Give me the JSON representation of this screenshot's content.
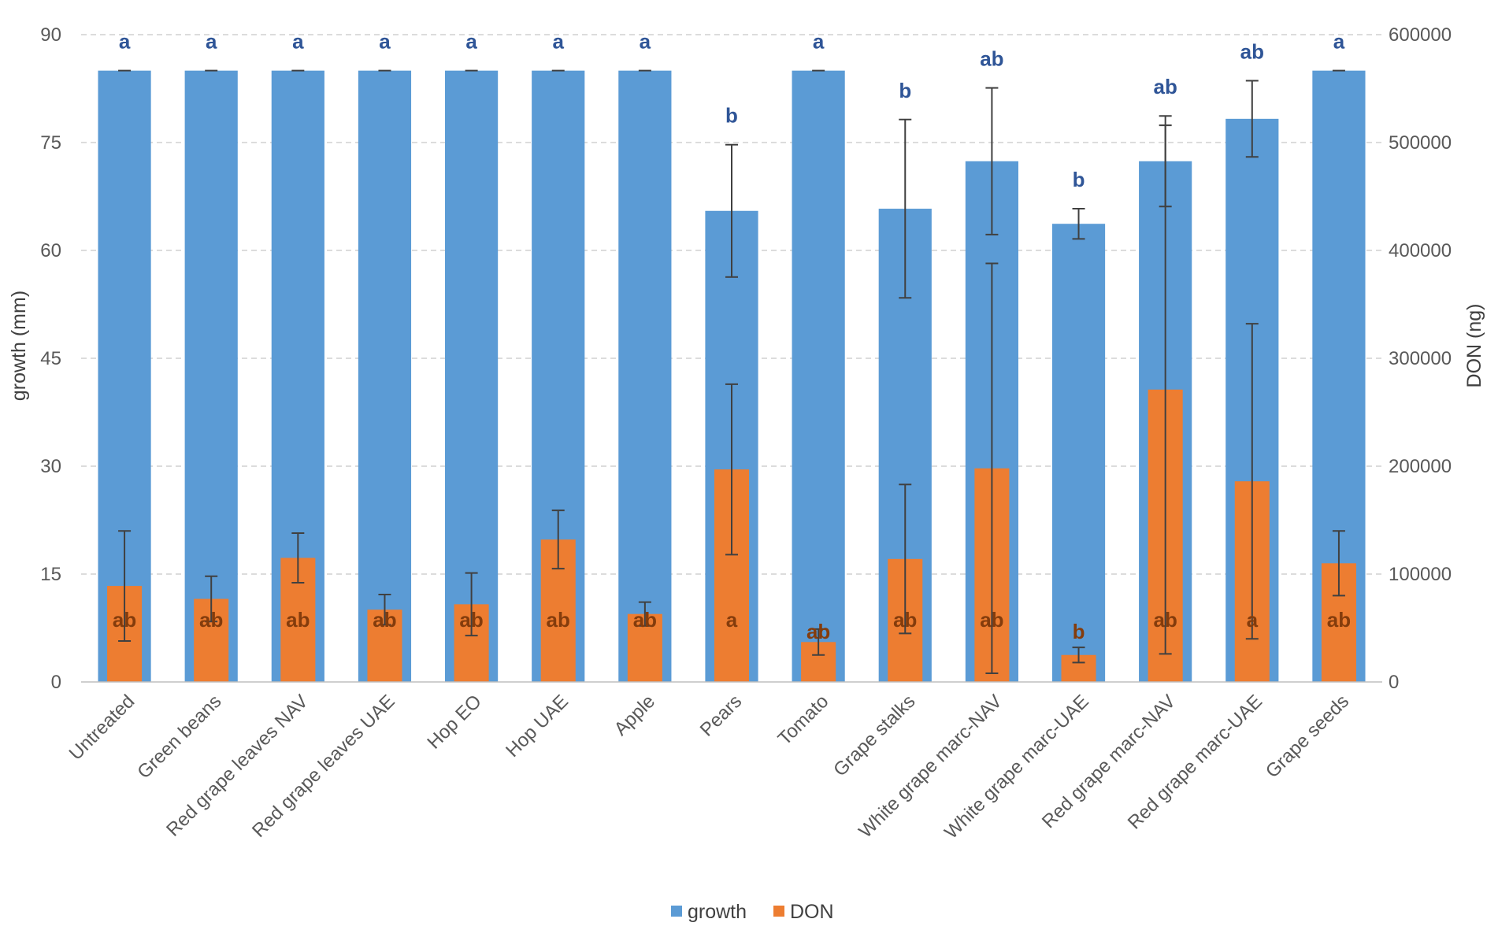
{
  "chart_data": {
    "type": "bar",
    "title": "",
    "xlabel": "",
    "ylabel": "growth (mm)",
    "y2label": "DON (ng)",
    "ylim": [
      0,
      90
    ],
    "y2lim": [
      0,
      600000
    ],
    "yticks": [
      "0",
      "15",
      "30",
      "45",
      "60",
      "75",
      "90"
    ],
    "y2ticks": [
      "0",
      "100000",
      "200000",
      "300000",
      "400000",
      "500000",
      "600000"
    ],
    "grid": true,
    "legend_position": "bottom",
    "categories": [
      "Untreated",
      "Green beans",
      "Red grape leaves NAV",
      "Red grape leaves UAE",
      "Hop EO",
      "Hop UAE",
      "Apple",
      "Pears",
      "Tomato",
      "Grape stalks",
      "White grape marc-NAV",
      "White grape marc-UAE",
      "Red grape marc-NAV",
      "Red grape marc-UAE",
      "Grape seeds"
    ],
    "series": [
      {
        "name": "growth",
        "axis": "left",
        "color": "#5b9bd5",
        "values": [
          85,
          85,
          85,
          85,
          85,
          85,
          85,
          65.5,
          85,
          65.8,
          72.4,
          63.7,
          72.4,
          78.3,
          85
        ],
        "errors": [
          0,
          0,
          0,
          0,
          0,
          0,
          0,
          9.2,
          0,
          12.4,
          10.2,
          2.1,
          6.3,
          5.3,
          0
        ],
        "labels": [
          "a",
          "a",
          "a",
          "a",
          "a",
          "a",
          "a",
          "b",
          "a",
          "b",
          "ab",
          "b",
          "ab",
          "ab",
          "a"
        ]
      },
      {
        "name": "DON",
        "axis": "right",
        "color": "#ed7d31",
        "values": [
          89000,
          77000,
          115000,
          67000,
          72000,
          132000,
          63000,
          197000,
          37000,
          114000,
          198000,
          25000,
          271000,
          186000,
          110000
        ],
        "errors": [
          51000,
          21000,
          23000,
          14000,
          29000,
          27000,
          11000,
          79000,
          12000,
          69000,
          190000,
          7000,
          245000,
          146000,
          30000
        ],
        "labels": [
          "ab",
          "ab",
          "ab",
          "ab",
          "ab",
          "ab",
          "ab",
          "a",
          "ab",
          "ab",
          "ab",
          "b",
          "ab",
          "a",
          "ab"
        ]
      }
    ]
  }
}
